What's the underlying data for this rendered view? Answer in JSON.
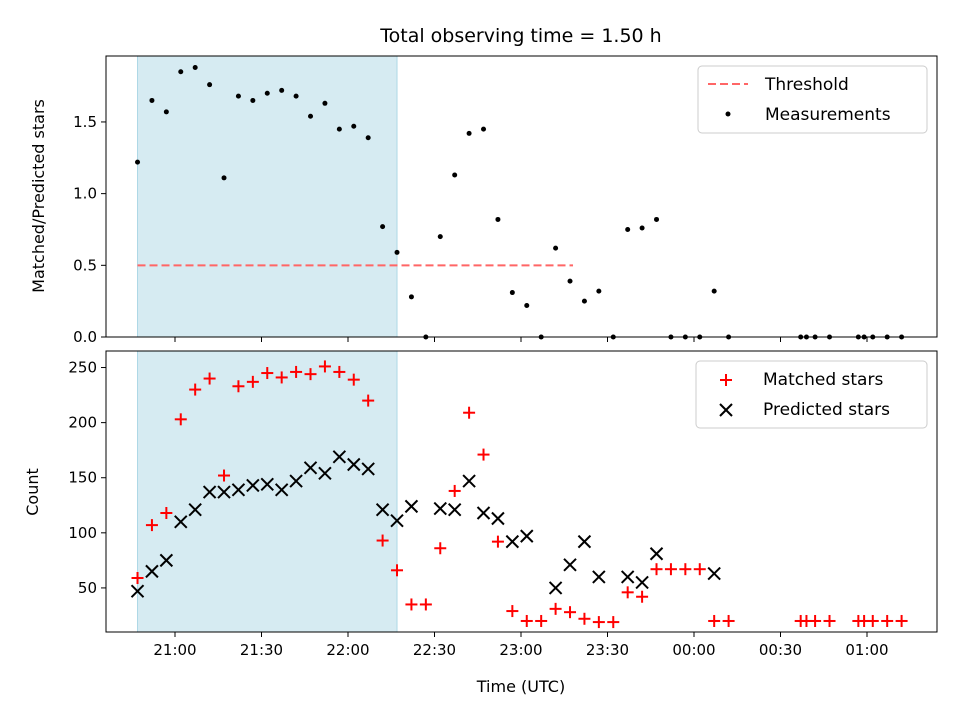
{
  "title": "Total observing time = 1.50 h",
  "xlabel": "Time (UTC)",
  "x_tick_labels": [
    "21:00",
    "21:30",
    "22:00",
    "22:30",
    "23:00",
    "23:30",
    "00:00",
    "00:30",
    "01:00"
  ],
  "highlight_span": [
    "20:47",
    "22:17"
  ],
  "colors": {
    "highlight": "#add8e6",
    "threshold": "#ff6666",
    "matched": "#ff0000",
    "predicted": "#000000",
    "measurement": "#000000"
  },
  "chart_data": [
    {
      "type": "scatter",
      "ylabel": "Matched/Predicted stars",
      "ylim": [
        0,
        1.96
      ],
      "y_ticks": [
        "0.0",
        "0.5",
        "1.0",
        "1.5"
      ],
      "legend": {
        "position": "top-right",
        "threshold_label": "Threshold",
        "measurements_label": "Measurements"
      },
      "threshold": 0.5,
      "threshold_range": [
        "20:47",
        "23:17:30"
      ],
      "series": [
        {
          "name": "Measurements",
          "marker": "dot",
          "points": [
            [
              "20:47",
              1.22
            ],
            [
              "20:52",
              1.65
            ],
            [
              "20:57",
              1.57
            ],
            [
              "21:02",
              1.85
            ],
            [
              "21:07",
              1.88
            ],
            [
              "21:12",
              1.76
            ],
            [
              "21:17",
              1.11
            ],
            [
              "21:22",
              1.68
            ],
            [
              "21:27",
              1.65
            ],
            [
              "21:32",
              1.7
            ],
            [
              "21:37",
              1.72
            ],
            [
              "21:42",
              1.68
            ],
            [
              "21:47",
              1.54
            ],
            [
              "21:52",
              1.63
            ],
            [
              "21:57",
              1.45
            ],
            [
              "22:02",
              1.47
            ],
            [
              "22:07",
              1.39
            ],
            [
              "22:12",
              0.77
            ],
            [
              "22:17",
              0.59
            ],
            [
              "22:22",
              0.28
            ],
            [
              "22:27",
              0.0
            ],
            [
              "22:32",
              0.7
            ],
            [
              "22:37",
              1.13
            ],
            [
              "22:42",
              1.42
            ],
            [
              "22:47",
              1.45
            ],
            [
              "22:52",
              0.82
            ],
            [
              "22:57",
              0.31
            ],
            [
              "23:02",
              0.22
            ],
            [
              "23:07",
              0.0
            ],
            [
              "23:12",
              0.62
            ],
            [
              "23:17",
              0.39
            ],
            [
              "23:22",
              0.25
            ],
            [
              "23:27",
              0.32
            ],
            [
              "23:32",
              0.0
            ],
            [
              "23:37",
              0.75
            ],
            [
              "23:42",
              0.76
            ],
            [
              "23:47",
              0.82
            ],
            [
              "23:52",
              0.0
            ],
            [
              "23:57",
              0.0
            ],
            [
              "00:02",
              0.0
            ],
            [
              "00:07",
              0.32
            ],
            [
              "00:12",
              0.0
            ],
            [
              "00:37",
              0.0
            ],
            [
              "00:39",
              0.0
            ],
            [
              "00:42",
              0.0
            ],
            [
              "00:47",
              0.0
            ],
            [
              "00:57",
              0.0
            ],
            [
              "00:59",
              0.0
            ],
            [
              "01:02",
              0.0
            ],
            [
              "01:07",
              0.0
            ],
            [
              "01:12",
              0.0
            ]
          ]
        }
      ]
    },
    {
      "type": "scatter",
      "ylabel": "Count",
      "ylim": [
        10,
        265
      ],
      "y_ticks": [
        "50",
        "100",
        "150",
        "200",
        "250"
      ],
      "legend": {
        "position": "top-right"
      },
      "series": [
        {
          "name": "Matched stars",
          "marker": "plus",
          "points": [
            [
              "20:47",
              59
            ],
            [
              "20:52",
              107
            ],
            [
              "20:57",
              118
            ],
            [
              "21:02",
              203
            ],
            [
              "21:07",
              230
            ],
            [
              "21:12",
              240
            ],
            [
              "21:17",
              152
            ],
            [
              "21:22",
              233
            ],
            [
              "21:27",
              237
            ],
            [
              "21:32",
              245
            ],
            [
              "21:37",
              241
            ],
            [
              "21:42",
              246
            ],
            [
              "21:47",
              244
            ],
            [
              "21:52",
              251
            ],
            [
              "21:57",
              246
            ],
            [
              "22:02",
              239
            ],
            [
              "22:07",
              220
            ],
            [
              "22:12",
              93
            ],
            [
              "22:17",
              66
            ],
            [
              "22:22",
              35
            ],
            [
              "22:27",
              35
            ],
            [
              "22:32",
              86
            ],
            [
              "22:37",
              138
            ],
            [
              "22:42",
              209
            ],
            [
              "22:47",
              171
            ],
            [
              "22:52",
              92
            ],
            [
              "22:57",
              29
            ],
            [
              "23:02",
              20
            ],
            [
              "23:07",
              20
            ],
            [
              "23:12",
              31
            ],
            [
              "23:17",
              28
            ],
            [
              "23:22",
              22
            ],
            [
              "23:27",
              19
            ],
            [
              "23:32",
              19
            ],
            [
              "23:37",
              46
            ],
            [
              "23:42",
              42
            ],
            [
              "23:47",
              67
            ],
            [
              "23:52",
              67
            ],
            [
              "23:57",
              67
            ],
            [
              "00:02",
              67
            ],
            [
              "00:07",
              20
            ],
            [
              "00:12",
              20
            ],
            [
              "00:37",
              20
            ],
            [
              "00:39",
              20
            ],
            [
              "00:42",
              20
            ],
            [
              "00:47",
              20
            ],
            [
              "00:57",
              20
            ],
            [
              "00:59",
              20
            ],
            [
              "01:02",
              20
            ],
            [
              "01:07",
              20
            ],
            [
              "01:12",
              20
            ]
          ]
        },
        {
          "name": "Predicted stars",
          "marker": "x",
          "points": [
            [
              "20:47",
              47
            ],
            [
              "20:52",
              65
            ],
            [
              "20:57",
              75
            ],
            [
              "21:02",
              110
            ],
            [
              "21:07",
              121
            ],
            [
              "21:12",
              137
            ],
            [
              "21:17",
              137
            ],
            [
              "21:22",
              139
            ],
            [
              "21:27",
              143
            ],
            [
              "21:32",
              144
            ],
            [
              "21:37",
              139
            ],
            [
              "21:42",
              147
            ],
            [
              "21:47",
              159
            ],
            [
              "21:52",
              154
            ],
            [
              "21:57",
              169
            ],
            [
              "22:02",
              162
            ],
            [
              "22:07",
              158
            ],
            [
              "22:12",
              121
            ],
            [
              "22:17",
              111
            ],
            [
              "22:22",
              124
            ],
            [
              "22:32",
              122
            ],
            [
              "22:37",
              121
            ],
            [
              "22:42",
              147
            ],
            [
              "22:47",
              118
            ],
            [
              "22:52",
              113
            ],
            [
              "22:57",
              92
            ],
            [
              "23:02",
              97
            ],
            [
              "23:12",
              50
            ],
            [
              "23:17",
              71
            ],
            [
              "23:22",
              92
            ],
            [
              "23:27",
              60
            ],
            [
              "23:37",
              60
            ],
            [
              "23:42",
              55
            ],
            [
              "23:47",
              81
            ],
            [
              "00:07",
              63
            ]
          ]
        }
      ]
    }
  ]
}
